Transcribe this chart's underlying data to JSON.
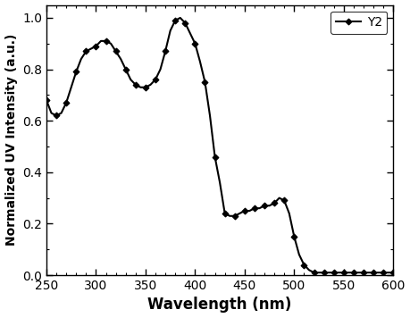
{
  "x_data": [
    250,
    255,
    260,
    265,
    270,
    275,
    280,
    285,
    290,
    295,
    300,
    305,
    310,
    315,
    320,
    325,
    330,
    335,
    340,
    345,
    350,
    355,
    360,
    365,
    370,
    375,
    380,
    385,
    390,
    395,
    400,
    405,
    410,
    415,
    420,
    425,
    430,
    435,
    440,
    445,
    450,
    455,
    460,
    465,
    470,
    475,
    480,
    485,
    490,
    495,
    500,
    505,
    510,
    515,
    520,
    525,
    530,
    535,
    540,
    545,
    550,
    555,
    560,
    565,
    570,
    575,
    580,
    585,
    590,
    595,
    600
  ],
  "y_data": [
    0.68,
    0.63,
    0.62,
    0.63,
    0.67,
    0.73,
    0.79,
    0.84,
    0.87,
    0.88,
    0.89,
    0.91,
    0.91,
    0.9,
    0.87,
    0.84,
    0.8,
    0.76,
    0.74,
    0.73,
    0.73,
    0.74,
    0.76,
    0.8,
    0.87,
    0.95,
    0.99,
    1.0,
    0.98,
    0.94,
    0.9,
    0.83,
    0.75,
    0.62,
    0.46,
    0.36,
    0.24,
    0.23,
    0.23,
    0.24,
    0.25,
    0.25,
    0.26,
    0.26,
    0.27,
    0.27,
    0.28,
    0.3,
    0.29,
    0.24,
    0.15,
    0.08,
    0.04,
    0.02,
    0.01,
    0.01,
    0.01,
    0.01,
    0.01,
    0.01,
    0.01,
    0.01,
    0.01,
    0.01,
    0.01,
    0.01,
    0.01,
    0.01,
    0.01,
    0.01,
    0.01
  ],
  "title": "",
  "xlabel": "Wavelength (nm)",
  "ylabel": "Normalized UV Intensity (a.u.)",
  "xlim": [
    250,
    600
  ],
  "ylim": [
    0,
    1.05
  ],
  "xticks": [
    250,
    300,
    350,
    400,
    450,
    500,
    550,
    600
  ],
  "yticks": [
    0.0,
    0.2,
    0.4,
    0.6,
    0.8,
    1.0
  ],
  "legend_label": "Y2",
  "line_color": "#000000",
  "marker_color": "#000000",
  "marker_style": "D",
  "marker_size": 3.5,
  "line_width": 1.5,
  "bg_color": "#ffffff",
  "xlabel_fontsize": 12,
  "ylabel_fontsize": 10,
  "tick_labelsize": 10
}
